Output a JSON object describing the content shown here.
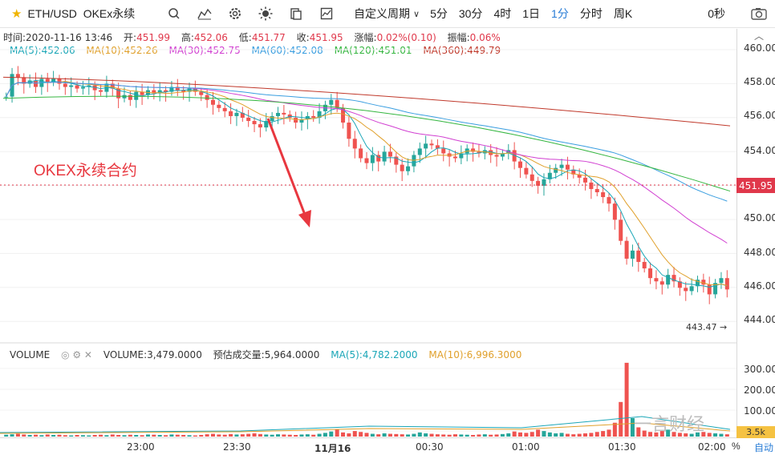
{
  "toolbar": {
    "symbol": "ETH/USD",
    "exchange": "OKEx永续",
    "icons": [
      "search-icon",
      "indicator-icon",
      "settings-icon",
      "theme-icon",
      "copy-icon",
      "compare-icon"
    ],
    "custom_period": "自定义周期",
    "timeframes": [
      "5分",
      "30分",
      "4时",
      "1日",
      "1分",
      "分时",
      "周K"
    ],
    "active_timeframe": "1分",
    "seconds": "0秒"
  },
  "ohlc": {
    "time_label": "时间:",
    "time": "2020-11-16 13:46",
    "open_label": "开:",
    "open": "451.99",
    "high_label": "高:",
    "high": "452.06",
    "low_label": "低:",
    "low": "451.77",
    "close_label": "收:",
    "close": "451.95",
    "change_label": "涨幅:",
    "change": "0.02%(0.10)",
    "amp_label": "振幅:",
    "amp": "0.06%"
  },
  "ma_legend": {
    "ma5": "MA(5):452.06",
    "ma10": "MA(10):452.26",
    "ma30": "MA(30):452.75",
    "ma60": "MA(60):452.08",
    "ma120": "MA(120):451.01",
    "ma360": "MA(360):449.79"
  },
  "colors": {
    "ma5": "#1aa6b7",
    "ma10": "#e0a02b",
    "ma30": "#d13fd1",
    "ma60": "#3a9ee0",
    "ma120": "#35b640",
    "ma360": "#c0392b",
    "up": "#26a69a",
    "down": "#ef5350",
    "accent": "#2a7dd6"
  },
  "volume_panel": {
    "title": "VOLUME",
    "volume": "VOLUME:3,479.0000",
    "est_volume": "预估成交量:5,964.0000",
    "vma5": "MA(5):4,782.2000",
    "vma10": "MA(10):6,996.3000"
  },
  "price_axis": [
    "460.00",
    "458.00",
    "456.00",
    "454.00",
    "452.00",
    "450.00",
    "448.00",
    "446.00",
    "444.00"
  ],
  "current_price": "451.95",
  "volume_axis": [
    "300.00k",
    "200.00k",
    "100.00k"
  ],
  "volume_current": "3.5k",
  "time_axis": [
    "23:00",
    "23:30",
    "11月16",
    "00:30",
    "01:00",
    "01:30",
    "02:00"
  ],
  "annotation": "OKEX永续合约",
  "low_marker": "443.47",
  "pct_label": "%",
  "auto_label": "自动",
  "watermark": "一言财经",
  "chart_data": {
    "type": "candlestick",
    "ylim": [
      443.0,
      460.8
    ],
    "closes": [
      457.8,
      459.2,
      459.0,
      458.6,
      458.8,
      458.4,
      458.9,
      458.7,
      458.9,
      458.6,
      458.4,
      458.5,
      458.3,
      458.4,
      458.5,
      458.2,
      458.1,
      458.6,
      458.3,
      457.7,
      457.9,
      457.6,
      458.1,
      457.9,
      458.2,
      458.0,
      458.2,
      458.1,
      458.4,
      458.2,
      458.1,
      458.3,
      458.1,
      457.9,
      457.6,
      457.3,
      457.1,
      456.9,
      456.6,
      456.8,
      456.5,
      456.3,
      456.1,
      455.9,
      456.3,
      456.6,
      456.8,
      456.7,
      456.5,
      456.2,
      456.4,
      456.6,
      456.5,
      456.9,
      457.3,
      457.6,
      457.1,
      456.2,
      455.2,
      454.6,
      454.0,
      453.7,
      454.2,
      453.8,
      454.4,
      454.1,
      453.6,
      453.2,
      453.5,
      454.2,
      454.6,
      454.9,
      454.8,
      454.6,
      454.3,
      454.1,
      454.0,
      454.3,
      454.6,
      454.4,
      454.3,
      454.5,
      454.2,
      454.1,
      454.3,
      454.5,
      453.8,
      453.4,
      453.0,
      452.6,
      452.3,
      452.7,
      453.1,
      453.4,
      453.6,
      453.3,
      453.0,
      452.8,
      452.5,
      452.1,
      451.9,
      451.6,
      451.2,
      450.2,
      448.9,
      447.8,
      448.3,
      447.6,
      447.2,
      446.6,
      446.4,
      446.2,
      446.8,
      446.4,
      446.0,
      445.8,
      446.1,
      446.5,
      446.2,
      445.6,
      446.3,
      446.6,
      445.9
    ],
    "volumes": [
      8,
      10,
      12,
      9,
      7,
      8,
      6,
      9,
      7,
      8,
      6,
      5,
      7,
      6,
      5,
      7,
      8,
      6,
      9,
      7,
      6,
      8,
      7,
      6,
      9,
      8,
      7,
      6,
      9,
      8,
      7,
      6,
      5,
      7,
      10,
      12,
      9,
      8,
      11,
      9,
      10,
      12,
      14,
      11,
      9,
      8,
      10,
      9,
      8,
      7,
      9,
      10,
      8,
      12,
      16,
      22,
      30,
      18,
      14,
      24,
      20,
      16,
      12,
      10,
      14,
      12,
      11,
      10,
      9,
      12,
      18,
      14,
      12,
      10,
      9,
      8,
      10,
      9,
      8,
      7,
      9,
      10,
      8,
      9,
      11,
      14,
      22,
      18,
      16,
      20,
      30,
      24,
      18,
      14,
      16,
      12,
      10,
      12,
      14,
      16,
      20,
      24,
      30,
      60,
      150,
      320,
      80,
      40,
      26,
      20,
      18,
      24,
      30,
      20,
      16,
      14,
      12,
      18,
      20,
      16,
      14,
      12,
      10
    ]
  }
}
